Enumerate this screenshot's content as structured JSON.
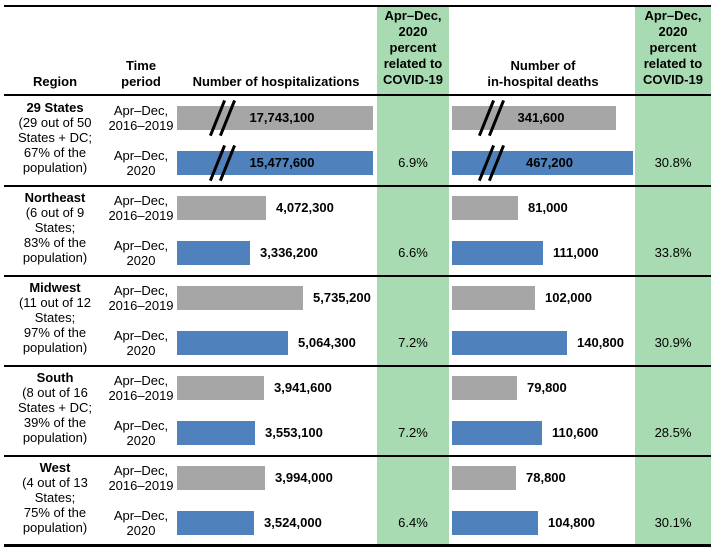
{
  "header": {
    "region": "Region",
    "time_period": "Time\nperiod",
    "hospitalizations": "Number of hospitalizations",
    "hosp_covid_pct": "Apr–Dec,\n2020\npercent\nrelated to\nCOVID-19",
    "deaths": "Number of\nin-hospital deaths",
    "deaths_covid_pct": "Apr–Dec,\n2020\npercent\nrelated to\nCOVID-19"
  },
  "colors": {
    "green": "#A9DBB2",
    "gray": "#A6A6A6",
    "blue": "#4F81BD",
    "line": "#000000"
  },
  "chart_data": {
    "type": "bar",
    "orientation": "horizontal",
    "measures": [
      "Number of hospitalizations",
      "Number of in-hospital deaths"
    ],
    "series_periods": [
      "Apr–Dec, 2016–2019",
      "Apr–Dec, 2020"
    ],
    "regions": [
      {
        "name": "29 States",
        "subtitle": "(29 out of 50\nStates + DC;\n67% of the\npopulation)",
        "axis_break": true,
        "rows": [
          {
            "period": "Apr–Dec,\n2016–2019",
            "color": "gray",
            "broken": true,
            "hospitalizations": 17743100,
            "hosp_label": "17,743,100",
            "deaths": 341600,
            "deaths_label": "341,600"
          },
          {
            "period": "Apr–Dec,\n2020",
            "color": "blue",
            "broken": true,
            "hospitalizations": 15477600,
            "hosp_label": "15,477,600",
            "deaths": 467200,
            "deaths_label": "467,200",
            "hosp_covid_pct": "6.9%",
            "deaths_covid_pct": "30.8%"
          }
        ]
      },
      {
        "name": "Northeast",
        "subtitle": "(6 out of 9\nStates;\n83% of the\npopulation)",
        "rows": [
          {
            "period": "Apr–Dec,\n2016–2019",
            "color": "gray",
            "hospitalizations": 4072300,
            "hosp_label": "4,072,300",
            "deaths": 81000,
            "deaths_label": "81,000"
          },
          {
            "period": "Apr–Dec,\n2020",
            "color": "blue",
            "hospitalizations": 3336200,
            "hosp_label": "3,336,200",
            "deaths": 111000,
            "deaths_label": "111,000",
            "hosp_covid_pct": "6.6%",
            "deaths_covid_pct": "33.8%"
          }
        ]
      },
      {
        "name": "Midwest",
        "subtitle": "(11 out of 12\nStates;\n97% of the\npopulation)",
        "rows": [
          {
            "period": "Apr–Dec,\n2016–2019",
            "color": "gray",
            "hospitalizations": 5735200,
            "hosp_label": "5,735,200",
            "deaths": 102000,
            "deaths_label": "102,000"
          },
          {
            "period": "Apr–Dec,\n2020",
            "color": "blue",
            "hospitalizations": 5064300,
            "hosp_label": "5,064,300",
            "deaths": 140800,
            "deaths_label": "140,800",
            "hosp_covid_pct": "7.2%",
            "deaths_covid_pct": "30.9%"
          }
        ]
      },
      {
        "name": "South",
        "subtitle": "(8 out of 16\nStates + DC;\n39% of the\npopulation)",
        "rows": [
          {
            "period": "Apr–Dec,\n2016–2019",
            "color": "gray",
            "hospitalizations": 3941600,
            "hosp_label": "3,941,600",
            "deaths": 79800,
            "deaths_label": "79,800"
          },
          {
            "period": "Apr–Dec,\n2020",
            "color": "blue",
            "hospitalizations": 3553100,
            "hosp_label": "3,553,100",
            "deaths": 110600,
            "deaths_label": "110,600",
            "hosp_covid_pct": "7.2%",
            "deaths_covid_pct": "28.5%"
          }
        ]
      },
      {
        "name": "West",
        "subtitle": "(4 out of 13\nStates;\n75% of the\npopulation)",
        "rows": [
          {
            "period": "Apr–Dec,\n2016–2019",
            "color": "gray",
            "hospitalizations": 3994000,
            "hosp_label": "3,994,000",
            "deaths": 78800,
            "deaths_label": "78,800"
          },
          {
            "period": "Apr–Dec,\n2020",
            "color": "blue",
            "hospitalizations": 3524000,
            "hosp_label": "3,524,000",
            "deaths": 104800,
            "deaths_label": "104,800",
            "hosp_covid_pct": "6.4%",
            "deaths_covid_pct": "30.1%"
          }
        ]
      }
    ]
  }
}
